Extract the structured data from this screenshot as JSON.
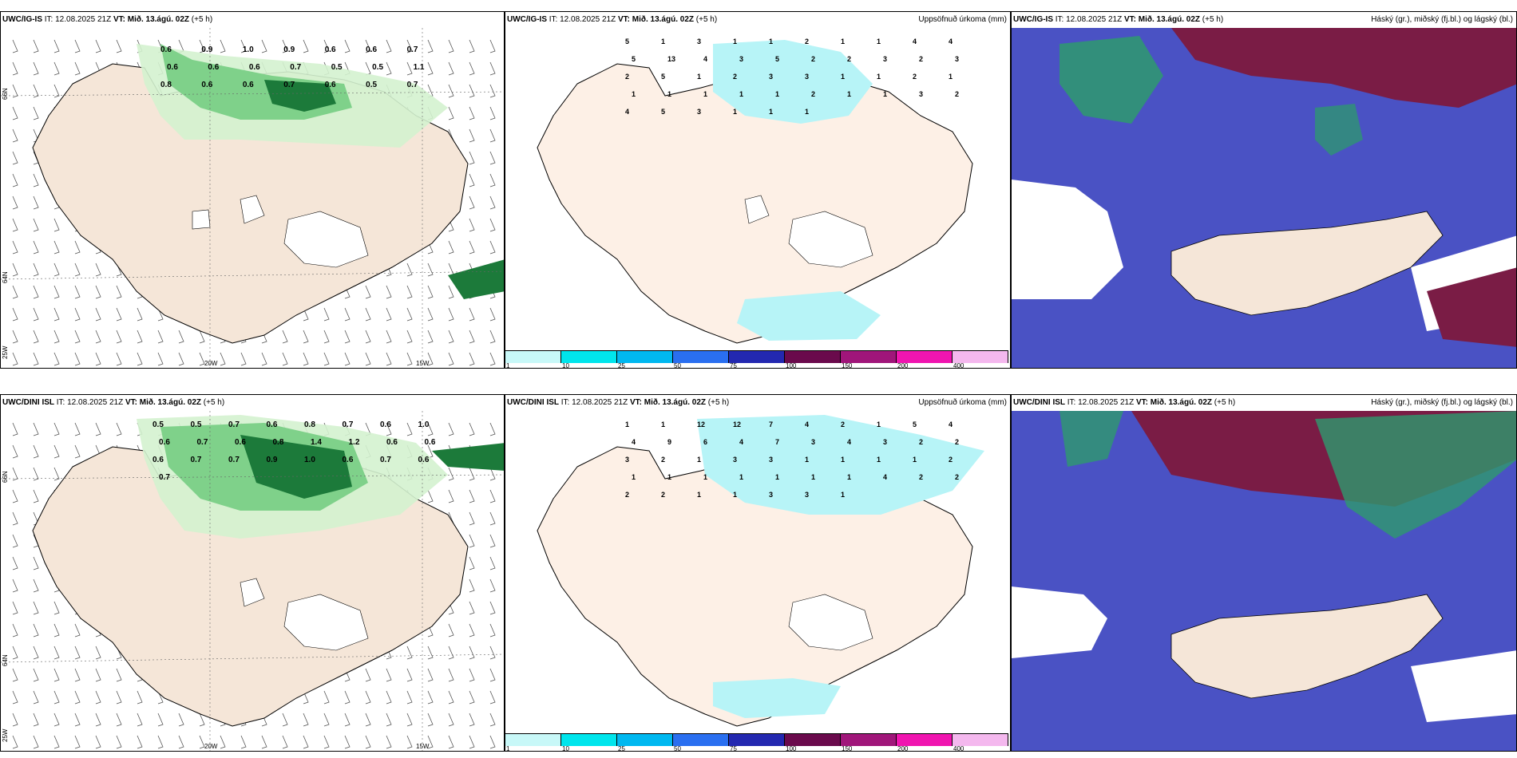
{
  "colors": {
    "land": "#f5e6d8",
    "precip_light": "#d4f2cf",
    "precip_mid": "#7fd18a",
    "precip_dark": "#1c7a3a",
    "accum": "#b7f4f7",
    "cloud_high": "#7a1c45",
    "cloud_mid": "#4a52c4",
    "cloud_low": "#2e9a6e"
  },
  "legend": {
    "ticks": [
      "1",
      "10",
      "25",
      "50",
      "75",
      "100",
      "150",
      "200",
      "400"
    ],
    "swatches": [
      "#c8f8f8",
      "#00e5ec",
      "#00b8f0",
      "#2a6ff0",
      "#2328b0",
      "#6a0a4c",
      "#a0167a",
      "#f015b0",
      "#f4b8ee"
    ]
  },
  "axes": {
    "lon_labels": [
      "20W",
      "15W"
    ],
    "lat_labels": [
      "66N",
      "64N",
      "25W"
    ]
  },
  "rows": [
    {
      "id": "igis",
      "model": "UWC/IG-IS",
      "it_label": "IT:",
      "it_value": "12.08.2025 21Z",
      "vt_label": "VT:",
      "vt_value": "Mið. 13.ágú. 02Z",
      "lead": "(+5 h)",
      "accum_title": "Uppsöfnuð úrkoma (mm)",
      "cloud_title": "Háský (gr.), miðský (fj.bl.) og lágský (bl.)",
      "precip_values": [
        "0.6",
        "0.9",
        "1.0",
        "0.9",
        "0.6",
        "0.6",
        "0.7",
        "0.6",
        "0.6",
        "0.6",
        "0.7",
        "0.5",
        "0.5",
        "1.1",
        "0.8",
        "0.6",
        "0.6",
        "0.7",
        "0.6",
        "0.5",
        "0.7"
      ],
      "accum_values": [
        "5",
        "1",
        "3",
        "1",
        "1",
        "2",
        "1",
        "1",
        "4",
        "4",
        "5",
        "13",
        "4",
        "3",
        "5",
        "2",
        "2",
        "3",
        "2",
        "3",
        "2",
        "5",
        "1",
        "2",
        "3",
        "3",
        "1",
        "1",
        "2",
        "1",
        "1",
        "1",
        "1",
        "1",
        "1",
        "2",
        "1",
        "1",
        "3",
        "2",
        "4",
        "5",
        "3",
        "1",
        "1",
        "1"
      ]
    },
    {
      "id": "dini",
      "model": "UWC/DINI ISL",
      "it_label": "IT:",
      "it_value": "12.08.2025 21Z",
      "vt_label": "VT:",
      "vt_value": "Mið. 13.ágú. 02Z",
      "lead": "(+5 h)",
      "accum_title": "Uppsöfnuð úrkoma (mm)",
      "cloud_title": "Háský (gr.), miðský (fj.bl.) og lágský (bl.)",
      "precip_values": [
        "0.5",
        "0.5",
        "0.7",
        "0.6",
        "0.8",
        "0.7",
        "0.6",
        "1.0",
        "0.6",
        "0.7",
        "0.6",
        "0.8",
        "1.4",
        "1.2",
        "0.6",
        "0.6",
        "0.6",
        "0.7",
        "0.7",
        "0.9",
        "1.0",
        "0.6",
        "0.7",
        "0.6",
        "0.7"
      ],
      "accum_values": [
        "1",
        "1",
        "12",
        "12",
        "7",
        "4",
        "2",
        "1",
        "5",
        "4",
        "4",
        "9",
        "6",
        "4",
        "7",
        "3",
        "4",
        "3",
        "2",
        "2",
        "3",
        "2",
        "1",
        "3",
        "3",
        "1",
        "1",
        "1",
        "1",
        "2",
        "1",
        "1",
        "1",
        "1",
        "1",
        "1",
        "1",
        "4",
        "2",
        "2",
        "2",
        "2",
        "1",
        "1",
        "3",
        "3",
        "1"
      ]
    }
  ]
}
